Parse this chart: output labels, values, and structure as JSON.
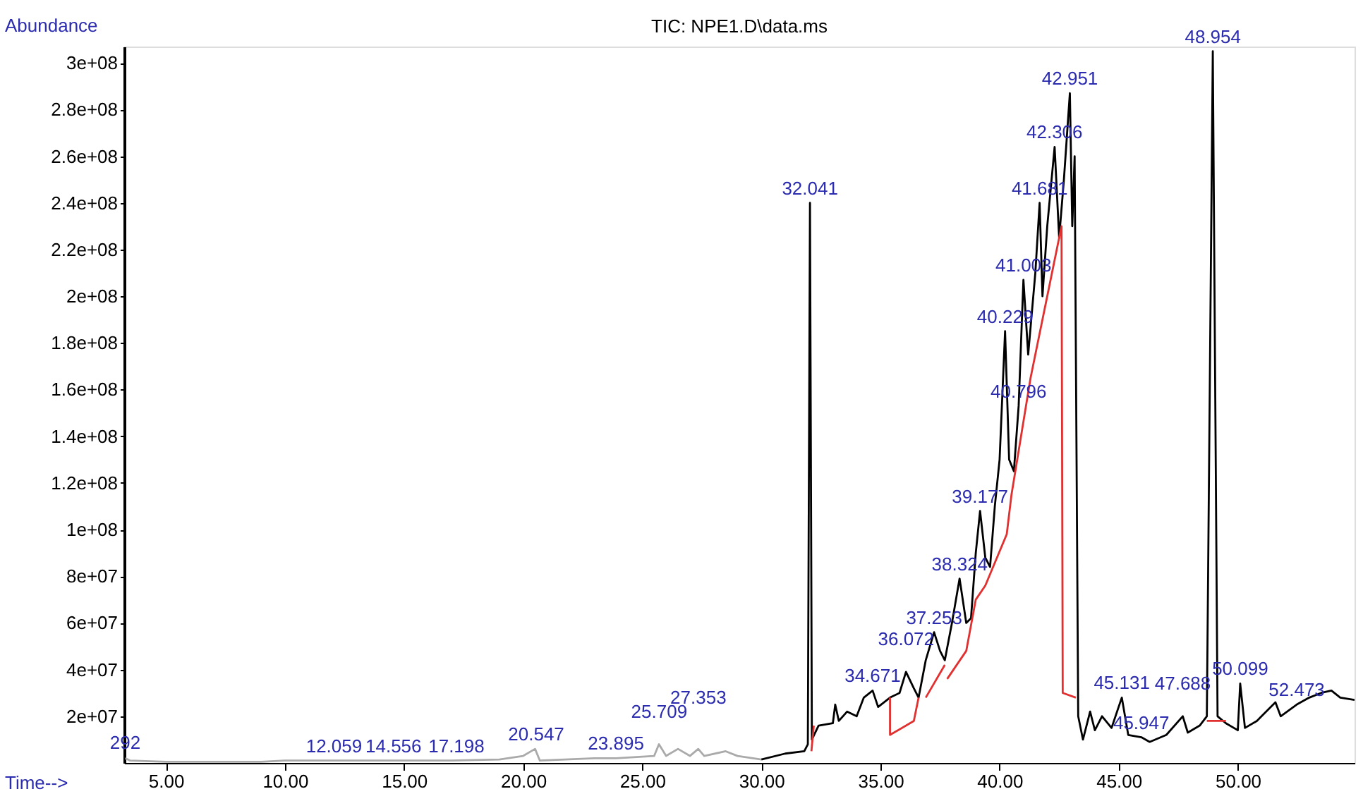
{
  "chart_data": {
    "type": "line",
    "title": "TIC: NPE1.D\\data.ms",
    "xlabel": "Time-->",
    "ylabel": "Abundance",
    "xlim": [
      3.25,
      54.9
    ],
    "ylim": [
      0,
      307000000.0
    ],
    "xticks": [
      {
        "value": 5,
        "label": "5.00"
      },
      {
        "value": 10,
        "label": "10.00"
      },
      {
        "value": 15,
        "label": "15.00"
      },
      {
        "value": 20,
        "label": "20.00"
      },
      {
        "value": 25,
        "label": "25.00"
      },
      {
        "value": 30,
        "label": "30.00"
      },
      {
        "value": 35,
        "label": "35.00"
      },
      {
        "value": 40,
        "label": "40.00"
      },
      {
        "value": 45,
        "label": "45.00"
      },
      {
        "value": 50,
        "label": "50.00"
      }
    ],
    "yticks": [
      {
        "value": 20000000.0,
        "label": "2e+07"
      },
      {
        "value": 40000000.0,
        "label": "4e+07"
      },
      {
        "value": 60000000.0,
        "label": "6e+07"
      },
      {
        "value": 80000000.0,
        "label": "8e+07"
      },
      {
        "value": 100000000.0,
        "label": "1e+08"
      },
      {
        "value": 120000000.0,
        "label": "1.2e+08"
      },
      {
        "value": 140000000.0,
        "label": "1.4e+08"
      },
      {
        "value": 160000000.0,
        "label": "1.6e+08"
      },
      {
        "value": 180000000.0,
        "label": "1.8e+08"
      },
      {
        "value": 200000000.0,
        "label": "2e+08"
      },
      {
        "value": 220000000.0,
        "label": "2.2e+08"
      },
      {
        "value": 240000000.0,
        "label": "2.4e+08"
      },
      {
        "value": 260000000.0,
        "label": "2.6e+08"
      },
      {
        "value": 280000000.0,
        "label": "2.8e+08"
      },
      {
        "value": 300000000.0,
        "label": "3e+08"
      }
    ],
    "grid": false,
    "marker": "none",
    "line_style": "solid",
    "series": [
      {
        "color": "#aaaaaa",
        "x": [
          3.3,
          3.5,
          5,
          9,
          10,
          12,
          15,
          17,
          19,
          20,
          20.5,
          20.7,
          23,
          23.9,
          25.5,
          25.7,
          26,
          26.5,
          27,
          27.35,
          27.6,
          28.5,
          29,
          30
        ],
        "values": [
          2000000.0,
          1000000.0,
          500000.0,
          500000.0,
          1000000.0,
          1000000.0,
          1000000.0,
          1000000.0,
          1500000.0,
          3000000.0,
          6000000.0,
          1000000.0,
          2000000.0,
          2000000.0,
          3000000.0,
          8000000.0,
          3000000.0,
          6000000.0,
          3000000.0,
          6000000.0,
          3000000.0,
          5000000.0,
          3000000.0,
          1500000.0
        ]
      },
      {
        "color": "#000000",
        "x": [
          30,
          31,
          31.8,
          31.95,
          32.04,
          32.12,
          32.4,
          33,
          33.1,
          33.25,
          33.6,
          34,
          34.3,
          34.67,
          34.9,
          35.4,
          35.8,
          36.07,
          36.4,
          36.6,
          36.9,
          37.25,
          37.5,
          37.7,
          38.0,
          38.32,
          38.6,
          38.8,
          39.0,
          39.18,
          39.4,
          39.6,
          39.8,
          40.0,
          40.23,
          40.4,
          40.6,
          40.8,
          40.9,
          41.0,
          41.2,
          41.5,
          41.68,
          41.8,
          42.0,
          42.31,
          42.5,
          42.7,
          42.95,
          43.05,
          43.15,
          43.3,
          43.5,
          43.8,
          44.0,
          44.3,
          44.7,
          45.13,
          45.4,
          45.95,
          46.3,
          47,
          47.69,
          47.9,
          48.4,
          48.7,
          48.95,
          49.15,
          49.5,
          50.0,
          50.1,
          50.3,
          50.8,
          51.58,
          51.8,
          52.47,
          53,
          53.5,
          53.93,
          54.3,
          54.9
        ],
        "values": [
          1500000.0,
          4000000.0,
          5000000.0,
          8000000.0,
          240000000.0,
          10000000.0,
          16000000.0,
          17000000.0,
          25000000.0,
          18000000.0,
          22000000.0,
          20000000.0,
          28000000.0,
          31000000.0,
          24000000.0,
          28000000.0,
          30000000.0,
          39000000.0,
          32000000.0,
          28000000.0,
          44000000.0,
          56000000.0,
          48000000.0,
          44000000.0,
          60000000.0,
          79000000.0,
          60000000.0,
          62000000.0,
          90000000.0,
          108000000.0,
          88000000.0,
          84000000.0,
          110000000.0,
          130000000.0,
          185000000.0,
          130000000.0,
          125000000.0,
          153000000.0,
          180000000.0,
          207000000.0,
          175000000.0,
          210000000.0,
          240000000.0,
          200000000.0,
          230000000.0,
          264000000.0,
          225000000.0,
          250000000.0,
          287000000.0,
          230000000.0,
          260000000.0,
          20000000.0,
          10000000.0,
          22000000.0,
          14000000.0,
          20000000.0,
          15000000.0,
          28000000.0,
          12000000.0,
          11000000.0,
          9000000.0,
          12000000.0,
          20000000.0,
          13000000.0,
          16000000.0,
          20000000.0,
          305000000.0,
          20000000.0,
          17000000.0,
          14000000.0,
          34000000.0,
          15000000.0,
          18000000.0,
          26000000.0,
          20000000.0,
          25000000.0,
          28000000.0,
          30000000.0,
          31000000.0,
          28000000.0,
          27000000.0
        ]
      },
      {
        "color": "#e03030",
        "x": [
          32.1,
          32.2,
          32.3,
          35.4,
          35.4,
          36.4,
          36.6,
          36.7,
          36.9,
          37.7,
          37.75,
          37.8,
          38.6,
          39.0,
          39.4,
          40.3,
          40.5,
          40.9,
          41.3,
          41.6,
          42.0,
          42.6,
          42.65,
          43.2,
          43.3,
          48.7,
          49.5
        ],
        "values": [
          5000000.0,
          16000000.0,
          null,
          28000000.0,
          12000000.0,
          18000000.0,
          28000000.0,
          null,
          28000000.0,
          42000000.0,
          null,
          36000000.0,
          48000000.0,
          70000000.0,
          76000000.0,
          98000000.0,
          115000000.0,
          140000000.0,
          165000000.0,
          180000000.0,
          200000000.0,
          230000000.0,
          30000000.0,
          28000000.0,
          null,
          18000000.0,
          18000000.0
        ]
      }
    ],
    "annotations": [
      {
        "text": "292",
        "x": 3.292,
        "y": 2400000.0
      },
      {
        "text": "12.059",
        "x": 12.059,
        "y": 1000000.0
      },
      {
        "text": "14.556",
        "x": 14.556,
        "y": 1000000.0
      },
      {
        "text": "17.198",
        "x": 17.198,
        "y": 1000000.0
      },
      {
        "text": "20.547",
        "x": 20.547,
        "y": 6000000.0
      },
      {
        "text": "23.895",
        "x": 23.895,
        "y": 2000000.0
      },
      {
        "text": "25.709",
        "x": 25.709,
        "y": 8000000.0
      },
      {
        "text": "27.353",
        "x": 27.353,
        "y": 6000000.0
      },
      {
        "text": "32.041",
        "x": 32.041,
        "y": 240000000.0
      },
      {
        "text": "34.671",
        "x": 34.671,
        "y": 31000000.0
      },
      {
        "text": "36.072",
        "x": 36.072,
        "y": 39000000.0
      },
      {
        "text": "37.253",
        "x": 37.253,
        "y": 56000000.0
      },
      {
        "text": "38.324",
        "x": 38.324,
        "y": 79000000.0
      },
      {
        "text": "39.177",
        "x": 39.177,
        "y": 108000000.0
      },
      {
        "text": "40.229",
        "x": 40.229,
        "y": 185000000.0
      },
      {
        "text": "40.796",
        "x": 40.796,
        "y": 153000000.0
      },
      {
        "text": "41.003",
        "x": 41.003,
        "y": 207000000.0
      },
      {
        "text": "41.681",
        "x": 41.681,
        "y": 240000000.0
      },
      {
        "text": "42.306",
        "x": 42.306,
        "y": 264000000.0
      },
      {
        "text": "42.951",
        "x": 42.951,
        "y": 287000000.0
      },
      {
        "text": "45.131",
        "x": 45.131,
        "y": 28000000.0
      },
      {
        "text": "45.947",
        "x": 45.947,
        "y": 11000000.0
      },
      {
        "text": "47.688",
        "x": 47.688,
        "y": 20000000.0
      },
      {
        "text": "48.954",
        "x": 48.954,
        "y": 305000000.0
      },
      {
        "text": "50.099",
        "x": 50.099,
        "y": 34000000.0
      },
      {
        "text": "52.473",
        "x": 52.473,
        "y": 25000000.0
      }
    ]
  }
}
